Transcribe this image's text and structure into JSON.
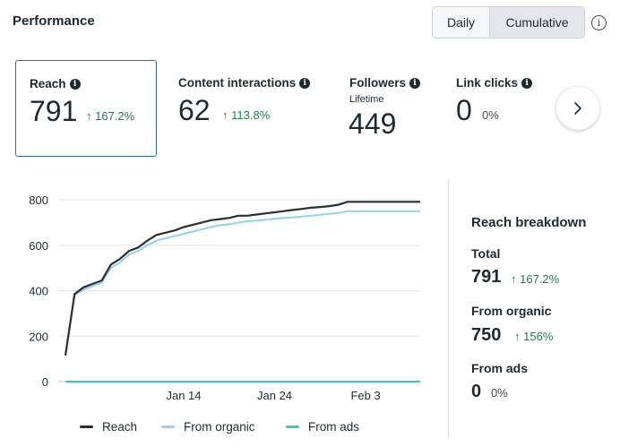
{
  "header": {
    "title": "Performance"
  },
  "toggle": {
    "daily": "Daily",
    "cumulative": "Cumulative",
    "selected": "Cumulative"
  },
  "cards": [
    {
      "label": "Reach",
      "value": "791",
      "delta": "167.2%",
      "sub": ""
    },
    {
      "label": "Content interactions",
      "value": "62",
      "delta": "113.8%",
      "sub": ""
    },
    {
      "label": "Followers",
      "value": "449",
      "delta": "",
      "sub": "Lifetime"
    },
    {
      "label": "Link clicks",
      "value": "0",
      "delta": "0%",
      "sub": ""
    }
  ],
  "breakdown": {
    "title": "Reach breakdown",
    "total_label": "Total",
    "total_value": "791",
    "total_delta": "167.2%",
    "organic_label": "From organic",
    "organic_value": "750",
    "organic_delta": "156%",
    "ads_label": "From ads",
    "ads_value": "0",
    "ads_delta": "0%"
  },
  "legend": {
    "reach": "Reach",
    "organic": "From organic",
    "ads": "From ads"
  },
  "colors": {
    "reach": "#2b2f33",
    "organic": "#8fd3f4",
    "ads": "#3cc6c1",
    "positive": "#1d7c4c"
  },
  "chart_data": {
    "type": "line",
    "title": "",
    "xlabel": "",
    "ylabel": "",
    "ylim": [
      0,
      800
    ],
    "yticks": [
      0,
      200,
      400,
      600,
      800
    ],
    "x": [
      1,
      2,
      3,
      4,
      5,
      6,
      7,
      8,
      9,
      10,
      11,
      12,
      13,
      14,
      15,
      16,
      17,
      18,
      19,
      20,
      21,
      22,
      23,
      24,
      25,
      26,
      27,
      28,
      29,
      30,
      31,
      32,
      33,
      34,
      35,
      36,
      37,
      38,
      39,
      40
    ],
    "xtick_labels": [
      {
        "x": 14,
        "label": "Jan 14"
      },
      {
        "x": 24,
        "label": "Jan 24"
      },
      {
        "x": 34,
        "label": "Feb 3"
      }
    ],
    "series": [
      {
        "name": "Reach",
        "values": [
          115,
          385,
          415,
          430,
          445,
          515,
          540,
          575,
          590,
          620,
          645,
          655,
          665,
          680,
          690,
          700,
          710,
          715,
          720,
          730,
          730,
          735,
          740,
          745,
          750,
          755,
          760,
          765,
          768,
          772,
          778,
          791,
          791,
          791,
          791,
          791,
          791,
          791,
          791,
          791
        ]
      },
      {
        "name": "From organic",
        "values": [
          115,
          380,
          405,
          420,
          435,
          500,
          525,
          560,
          575,
          600,
          620,
          630,
          640,
          650,
          660,
          670,
          680,
          688,
          692,
          700,
          705,
          708,
          712,
          716,
          720,
          722,
          726,
          730,
          734,
          738,
          742,
          750,
          750,
          750,
          750,
          750,
          750,
          750,
          750,
          750
        ]
      },
      {
        "name": "From ads",
        "values": [
          0,
          0,
          0,
          0,
          0,
          0,
          0,
          0,
          0,
          0,
          0,
          0,
          0,
          0,
          0,
          0,
          0,
          0,
          0,
          0,
          0,
          0,
          0,
          0,
          0,
          0,
          0,
          0,
          0,
          0,
          0,
          0,
          0,
          0,
          0,
          0,
          0,
          0,
          0,
          0
        ]
      }
    ]
  }
}
